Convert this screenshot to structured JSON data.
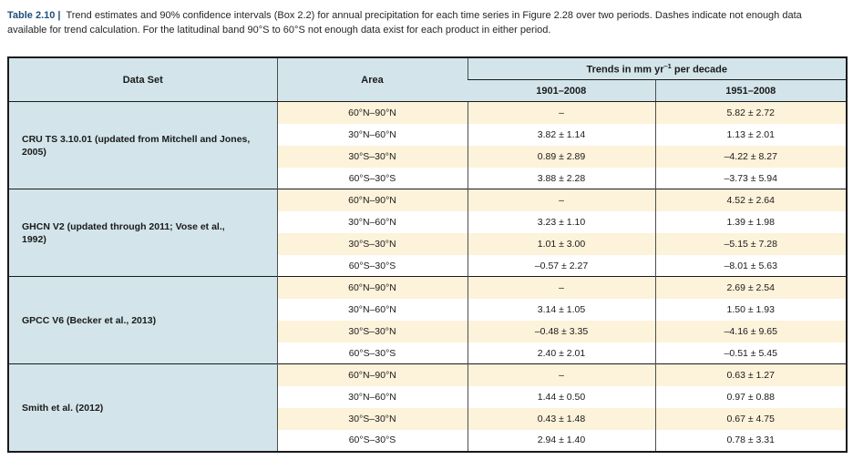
{
  "caption": {
    "label": "Table 2.10 |",
    "text": "Trend estimates and 90% confidence intervals (Box 2.2) for annual precipitation for each time series in Figure 2.28 over two periods. Dashes indicate not enough data available for trend calculation. For the latitudinal band 90°S to 60°S not enough data exist for each product in either period."
  },
  "colors": {
    "header_blue": "#d3e5ea",
    "row_cream": "#fdf2da",
    "row_white": "#ffffff",
    "border_dark": "#1a1a1a",
    "caption_label_blue": "#1f4e79"
  },
  "table": {
    "col_data_set": "Data Set",
    "col_area": "Area",
    "trends_header": {
      "prefix": "Trends in mm yr",
      "sup": "–1",
      "suffix": " per decade"
    },
    "col_period_1": "1901–2008",
    "col_period_2": "1951–2008",
    "sections": [
      {
        "data_set": "CRU TS 3.10.01 (updated from Mitchell and Jones, 2005)",
        "rows": [
          {
            "area": "60°N–90°N",
            "p1": "–",
            "p2": "5.82 ± 2.72"
          },
          {
            "area": "30°N–60°N",
            "p1": "3.82 ± 1.14",
            "p2": "1.13 ± 2.01"
          },
          {
            "area": "30°S–30°N",
            "p1": "0.89 ± 2.89",
            "p2": "–4.22 ± 8.27"
          },
          {
            "area": "60°S–30°S",
            "p1": "3.88 ± 2.28",
            "p2": "–3.73 ± 5.94"
          }
        ]
      },
      {
        "data_set": "GHCN V2 (updated through 2011; Vose et al., 1992)",
        "rows": [
          {
            "area": "60°N–90°N",
            "p1": "–",
            "p2": "4.52 ± 2.64"
          },
          {
            "area": "30°N–60°N",
            "p1": "3.23 ± 1.10",
            "p2": "1.39 ± 1.98"
          },
          {
            "area": "30°S–30°N",
            "p1": "1.01 ± 3.00",
            "p2": "–5.15 ± 7.28"
          },
          {
            "area": "60°S–30°S",
            "p1": "–0.57 ± 2.27",
            "p2": "–8.01 ± 5.63"
          }
        ]
      },
      {
        "data_set": "GPCC V6 (Becker et al., 2013)",
        "rows": [
          {
            "area": "60°N–90°N",
            "p1": "–",
            "p2": "2.69 ± 2.54"
          },
          {
            "area": "30°N–60°N",
            "p1": "3.14 ± 1.05",
            "p2": "1.50 ± 1.93"
          },
          {
            "area": "30°S–30°N",
            "p1": "–0.48 ± 3.35",
            "p2": "–4.16 ± 9.65"
          },
          {
            "area": "60°S–30°S",
            "p1": "2.40 ± 2.01",
            "p2": "–0.51 ± 5.45"
          }
        ]
      },
      {
        "data_set": "Smith et al. (2012)",
        "rows": [
          {
            "area": "60°N–90°N",
            "p1": "–",
            "p2": "0.63 ± 1.27"
          },
          {
            "area": "30°N–60°N",
            "p1": "1.44 ± 0.50",
            "p2": "0.97 ± 0.88"
          },
          {
            "area": "30°S–30°N",
            "p1": "0.43 ± 1.48",
            "p2": "0.67 ± 4.75"
          },
          {
            "area": "60°S–30°S",
            "p1": "2.94 ± 1.40",
            "p2": "0.78 ± 3.31"
          }
        ]
      }
    ]
  }
}
